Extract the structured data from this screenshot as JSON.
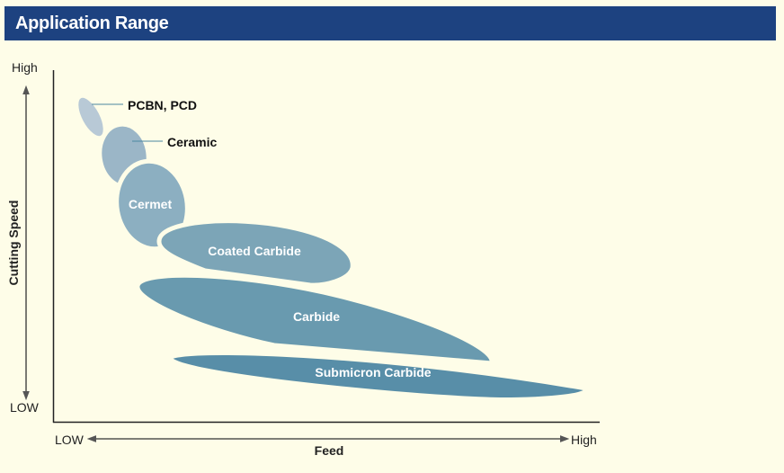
{
  "header": {
    "title": "Application Range"
  },
  "axes": {
    "y_label": "Cutting Speed",
    "y_high": "High",
    "y_low": "LOW",
    "x_label": "Feed",
    "x_low": "LOW",
    "x_high": "High"
  },
  "regions": [
    {
      "label": "PCBN, PCD",
      "color": "#b8c9d6"
    },
    {
      "label": "Ceramic",
      "color": "#9bb6c7"
    },
    {
      "label": "Cermet",
      "color": "#8cafc1"
    },
    {
      "label": "Coated Carbide",
      "color": "#7ca5b7"
    },
    {
      "label": "Carbide",
      "color": "#699aaf"
    },
    {
      "label": "Submicron Carbide",
      "color": "#588ea8"
    }
  ],
  "colors": {
    "header": "#1d4280",
    "background": "#fefde8"
  }
}
